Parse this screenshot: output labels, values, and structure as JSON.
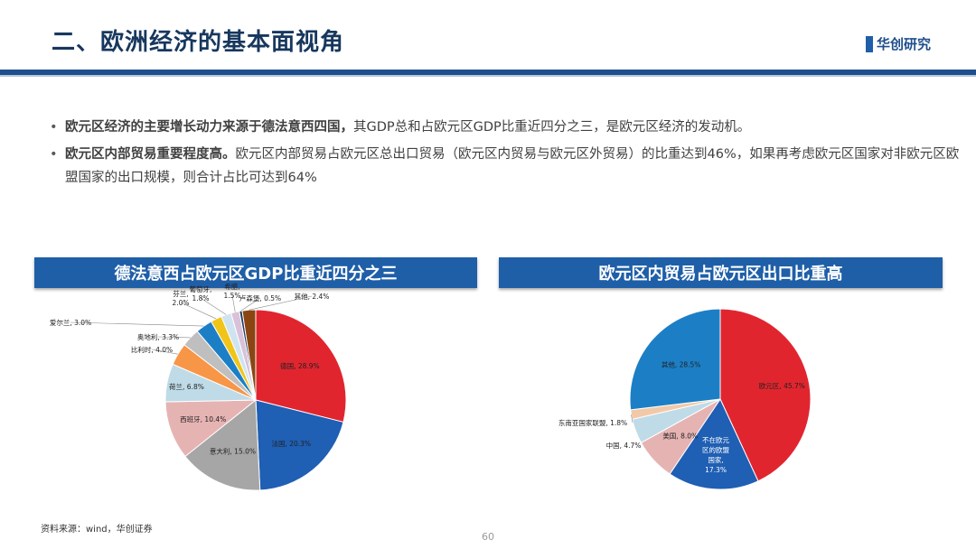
{
  "slide": {
    "title": "二、欧洲经济的基本面视角",
    "logo_text": "华创研究",
    "page_number": "60",
    "source": "资料来源：wind，华创证券"
  },
  "bullets": [
    {
      "bold": "欧元区经济的主要增长动力来源于德法意西四国，",
      "text": "其GDP总和占欧元区GDP比重近四分之三，是欧元区经济的发动机。"
    },
    {
      "bold": "欧元区内部贸易重要程度高。",
      "text": "欧元区内部贸易占欧元区总出口贸易（欧元区内贸易与欧元区外贸易）的比重达到46%，如果再考虑欧元区国家对非欧元区欧盟国家的出口规模，则合计占比可达到64%"
    }
  ],
  "chart_data": [
    {
      "type": "pie",
      "title": "德法意西占欧元区GDP比重近四分之三",
      "slices": [
        {
          "label": "德国, 28.9%",
          "value": 28.9,
          "color": "#e1252f"
        },
        {
          "label": "法国, 20.3%",
          "value": 20.3,
          "color": "#1f5fb4"
        },
        {
          "label": "意大利, 15.0%",
          "value": 15.0,
          "color": "#a6a6a6"
        },
        {
          "label": "西班牙, 10.4%",
          "value": 10.4,
          "color": "#e6b3b3"
        },
        {
          "label": "荷兰, 6.8%",
          "value": 6.8,
          "color": "#bfdbe8"
        },
        {
          "label": "比利时, 4.0%",
          "value": 4.0,
          "color": "#f79646"
        },
        {
          "label": "奥地利, 3.3%",
          "value": 3.3,
          "color": "#bfbfbf"
        },
        {
          "label": "爱尔兰, 3.0%",
          "value": 3.0,
          "color": "#1c7fc6"
        },
        {
          "label": "芬兰, 2.0%",
          "value": 2.0,
          "color": "#f0c419"
        },
        {
          "label": "葡萄牙, 1.8%",
          "value": 1.8,
          "color": "#cfe4f0"
        },
        {
          "label": "希腊, 1.5%",
          "value": 1.5,
          "color": "#d9c2d9"
        },
        {
          "label": "卢森堡, 0.5%",
          "value": 0.5,
          "color": "#203864"
        },
        {
          "label": "其他, 2.4%",
          "value": 2.4,
          "color": "#8b4513"
        }
      ]
    },
    {
      "type": "pie",
      "title": "欧元区内贸易占欧元区出口比重高",
      "slices": [
        {
          "label": "欧元区, 45.7%",
          "value": 45.7,
          "color": "#e1252f"
        },
        {
          "label": "不在欧元区的欧盟国家, 17.3%",
          "value": 17.3,
          "color": "#1f5fb4"
        },
        {
          "label": "美国, 8.0%",
          "value": 8.0,
          "color": "#e6b3b3"
        },
        {
          "label": "中国, 4.7%",
          "value": 4.7,
          "color": "#bfdbe8"
        },
        {
          "label": "东南亚国家联盟, 1.8%",
          "value": 1.8,
          "color": "#f2c9a8"
        },
        {
          "label": "其他, 28.5%",
          "value": 28.5,
          "color": "#1c7fc6"
        }
      ]
    }
  ]
}
